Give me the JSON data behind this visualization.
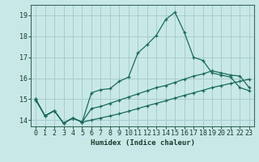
{
  "xlabel": "Humidex (Indice chaleur)",
  "background_color": "#c8e8e8",
  "grid_color": "#a8cccc",
  "line_color": "#1a6a5a",
  "xlim": [
    -0.5,
    23.5
  ],
  "ylim": [
    13.7,
    19.5
  ],
  "yticks": [
    14,
    15,
    16,
    17,
    18,
    19
  ],
  "xticks": [
    0,
    1,
    2,
    3,
    4,
    5,
    6,
    7,
    8,
    9,
    10,
    11,
    12,
    13,
    14,
    15,
    16,
    17,
    18,
    19,
    20,
    21,
    22,
    23
  ],
  "line_peak_x": [
    0,
    1,
    2,
    3,
    4,
    5,
    6,
    7,
    8,
    9,
    10,
    11,
    12,
    13,
    14,
    15,
    16,
    17,
    18,
    19,
    20,
    21,
    22,
    23
  ],
  "line_peak_y": [
    15.0,
    14.2,
    14.45,
    13.85,
    14.1,
    13.9,
    15.3,
    15.45,
    15.5,
    15.85,
    16.05,
    17.2,
    17.6,
    18.05,
    18.8,
    19.15,
    18.2,
    17.0,
    16.85,
    16.25,
    16.15,
    16.05,
    15.55,
    15.4
  ],
  "line_upper_x": [
    0,
    1,
    2,
    3,
    4,
    5,
    6,
    7,
    8,
    9,
    10,
    11,
    12,
    13,
    14,
    15,
    16,
    17,
    18,
    19,
    20,
    21,
    22,
    23
  ],
  "line_upper_y": [
    15.0,
    14.2,
    14.45,
    13.85,
    14.1,
    13.9,
    14.55,
    14.65,
    14.8,
    14.95,
    15.1,
    15.25,
    15.4,
    15.55,
    15.65,
    15.8,
    15.95,
    16.1,
    16.2,
    16.35,
    16.25,
    16.15,
    16.1,
    15.55
  ],
  "line_lower_x": [
    0,
    1,
    2,
    3,
    4,
    5,
    6,
    7,
    8,
    9,
    10,
    11,
    12,
    13,
    14,
    15,
    16,
    17,
    18,
    19,
    20,
    21,
    22,
    23
  ],
  "line_lower_y": [
    14.95,
    14.2,
    14.45,
    13.85,
    14.1,
    13.9,
    14.0,
    14.1,
    14.2,
    14.3,
    14.42,
    14.55,
    14.68,
    14.8,
    14.92,
    15.05,
    15.18,
    15.3,
    15.42,
    15.55,
    15.65,
    15.75,
    15.85,
    15.95
  ]
}
